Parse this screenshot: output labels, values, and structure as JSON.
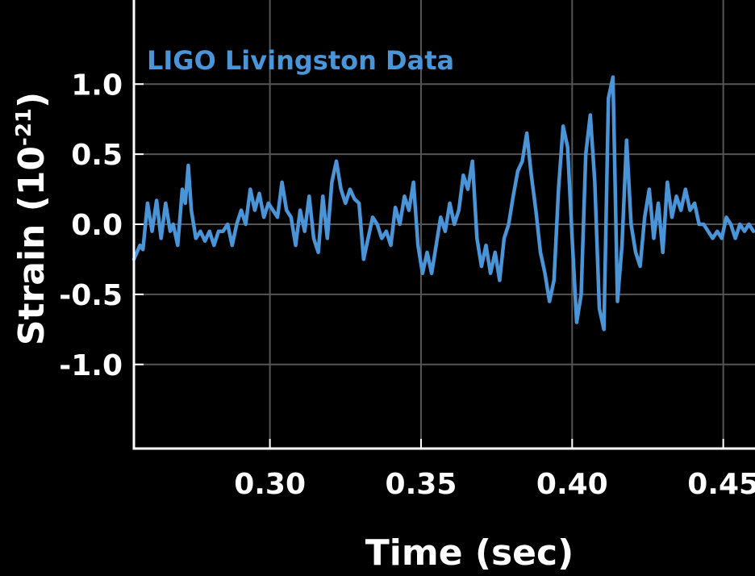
{
  "chart_data": {
    "type": "line",
    "title": "",
    "xlabel": "Time (sec)",
    "ylabel": "Strain (10",
    "ylabel_sup": "-21",
    "ylabel_close": ")",
    "xlim": [
      0.255,
      0.4605
    ],
    "ylim": [
      -1.6,
      1.6
    ],
    "x_ticks": [
      0.3,
      0.35,
      0.4,
      0.45
    ],
    "x_tick_labels": [
      "0.30",
      "0.35",
      "0.40",
      "0.45"
    ],
    "y_ticks": [
      1.0,
      0.5,
      0.0,
      -0.5,
      -1.0
    ],
    "y_tick_labels": [
      "1.0",
      "0.5",
      "0.0",
      "-0.5",
      "-1.0"
    ],
    "grid": true,
    "background_color": "#000000",
    "grid_color": "#555555",
    "axis_color": "#ffffff",
    "series": [
      {
        "name": "LIGO Livingston Data",
        "color": "#4a94d8",
        "x": [
          0.255,
          0.256,
          0.257,
          0.258,
          0.2595,
          0.261,
          0.2625,
          0.264,
          0.2655,
          0.267,
          0.268,
          0.2695,
          0.271,
          0.272,
          0.273,
          0.274,
          0.2755,
          0.277,
          0.2785,
          0.28,
          0.2815,
          0.283,
          0.2845,
          0.286,
          0.2875,
          0.289,
          0.2905,
          0.292,
          0.2935,
          0.295,
          0.2965,
          0.298,
          0.2995,
          0.301,
          0.3025,
          0.304,
          0.3055,
          0.307,
          0.3085,
          0.31,
          0.3115,
          0.313,
          0.3145,
          0.316,
          0.3175,
          0.319,
          0.3205,
          0.322,
          0.3235,
          0.325,
          0.3265,
          0.328,
          0.3295,
          0.331,
          0.3325,
          0.334,
          0.3355,
          0.337,
          0.3385,
          0.34,
          0.3415,
          0.343,
          0.3445,
          0.346,
          0.3475,
          0.349,
          0.3505,
          0.352,
          0.3535,
          0.355,
          0.3565,
          0.358,
          0.3595,
          0.361,
          0.3625,
          0.364,
          0.3655,
          0.367,
          0.3685,
          0.37,
          0.3715,
          0.373,
          0.3745,
          0.376,
          0.3775,
          0.379,
          0.3805,
          0.382,
          0.3835,
          0.385,
          0.3865,
          0.388,
          0.3895,
          0.391,
          0.3925,
          0.394,
          0.3955,
          0.397,
          0.3985,
          0.4,
          0.4015,
          0.403,
          0.4045,
          0.406,
          0.4075,
          0.409,
          0.4105,
          0.412,
          0.4135,
          0.415,
          0.4165,
          0.418,
          0.4195,
          0.421,
          0.4225,
          0.424,
          0.4255,
          0.427,
          0.4285,
          0.43,
          0.4315,
          0.433,
          0.4345,
          0.436,
          0.4375,
          0.439,
          0.4405,
          0.442,
          0.4435,
          0.445,
          0.4465,
          0.448,
          0.4495,
          0.451,
          0.4525,
          0.454,
          0.4555,
          0.457,
          0.4585,
          0.46
        ],
        "y": [
          -0.25,
          -0.2,
          -0.15,
          -0.18,
          0.15,
          -0.05,
          0.17,
          -0.1,
          0.15,
          -0.05,
          0.0,
          -0.15,
          0.25,
          0.15,
          0.42,
          0.1,
          -0.1,
          -0.05,
          -0.12,
          -0.05,
          -0.15,
          -0.05,
          -0.05,
          0.0,
          -0.15,
          0.0,
          0.1,
          0.0,
          0.25,
          0.1,
          0.22,
          0.05,
          0.15,
          0.1,
          0.05,
          0.3,
          0.1,
          0.05,
          -0.15,
          0.1,
          -0.05,
          0.2,
          -0.1,
          -0.2,
          0.2,
          -0.1,
          0.3,
          0.45,
          0.25,
          0.15,
          0.25,
          0.18,
          0.15,
          -0.25,
          -0.1,
          0.05,
          0.0,
          -0.1,
          -0.05,
          -0.15,
          0.12,
          0.0,
          0.2,
          0.1,
          0.3,
          -0.15,
          -0.35,
          -0.2,
          -0.35,
          -0.15,
          0.05,
          -0.05,
          0.15,
          0.0,
          0.1,
          0.35,
          0.25,
          0.45,
          -0.1,
          -0.3,
          -0.15,
          -0.35,
          -0.2,
          -0.4,
          -0.1,
          0.0,
          0.2,
          0.38,
          0.45,
          0.65,
          0.35,
          0.1,
          -0.2,
          -0.35,
          -0.55,
          -0.4,
          0.25,
          0.7,
          0.55,
          -0.1,
          -0.7,
          -0.5,
          0.5,
          0.78,
          0.3,
          -0.6,
          -0.75,
          0.9,
          1.05,
          -0.55,
          -0.15,
          0.6,
          0.0,
          -0.2,
          -0.3,
          0.05,
          0.25,
          -0.1,
          0.15,
          -0.2,
          0.3,
          0.05,
          0.2,
          0.1,
          0.25,
          0.1,
          0.15,
          0.0,
          0.0,
          -0.05,
          -0.1,
          -0.05,
          -0.1,
          0.05,
          0.0,
          -0.1,
          0.0,
          -0.05,
          0.0,
          -0.05
        ]
      }
    ]
  }
}
